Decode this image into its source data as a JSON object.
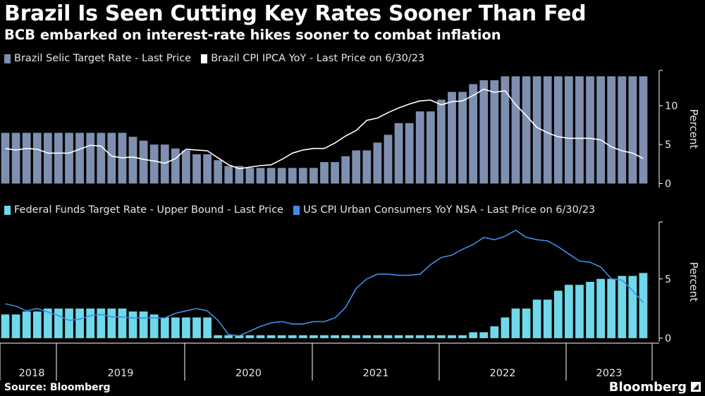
{
  "header": {
    "title": "Brazil Is Seen Cutting Key Rates Sooner Than Fed",
    "subtitle": "BCB embarked on interest-rate hikes sooner to combat inflation"
  },
  "footer": {
    "source": "Source: Bloomberg",
    "brand": "Bloomberg"
  },
  "colors": {
    "selic": "#7f8fb0",
    "ipca": "#ffffff",
    "fedfunds": "#6fd8ea",
    "uscpi": "#3e8ee8",
    "axis": "#ffffff"
  },
  "chart_data": [
    {
      "type": "bar",
      "title": "Brazil",
      "ylabel": "Percent",
      "ylim": [
        -0.5,
        14.5
      ],
      "yticks": [
        0,
        5,
        10
      ],
      "x_period": "quarterly 2018Q1-2023Q2 in 1/4-quarter steps (months/1.33)",
      "legend": [
        "Brazil Selic Target Rate - Last Price",
        "Brazil CPI IPCA YoY - Last Price on 6/30/23"
      ],
      "series": [
        {
          "name": "Brazil Selic Target Rate - Last Price",
          "type": "bar",
          "values": [
            6.5,
            6.5,
            6.5,
            6.5,
            6.5,
            6.5,
            6.5,
            6.5,
            6.5,
            6.5,
            6.5,
            6.5,
            6.0,
            5.5,
            5.0,
            5.0,
            4.5,
            4.25,
            3.75,
            3.75,
            3.0,
            2.25,
            2.25,
            2.0,
            2.0,
            2.0,
            2.0,
            2.0,
            2.0,
            2.0,
            2.75,
            2.75,
            3.5,
            4.25,
            4.25,
            5.25,
            6.25,
            7.75,
            7.75,
            9.25,
            9.25,
            10.75,
            11.75,
            11.75,
            12.75,
            13.25,
            13.25,
            13.75,
            13.75,
            13.75,
            13.75,
            13.75,
            13.75,
            13.75,
            13.75,
            13.75,
            13.75,
            13.75,
            13.75,
            13.75,
            13.75
          ]
        },
        {
          "name": "Brazil CPI IPCA YoY - Last Price on 6/30/23",
          "type": "line",
          "values": [
            4.5,
            4.3,
            4.5,
            4.4,
            3.9,
            3.9,
            3.9,
            4.4,
            4.9,
            4.8,
            3.5,
            3.3,
            3.4,
            3.1,
            2.9,
            2.6,
            3.2,
            4.4,
            4.3,
            4.2,
            3.3,
            2.4,
            1.9,
            2.1,
            2.3,
            2.4,
            3.1,
            3.9,
            4.3,
            4.5,
            4.5,
            5.2,
            6.1,
            6.8,
            8.1,
            8.4,
            9.1,
            9.7,
            10.2,
            10.6,
            10.7,
            10.1,
            10.5,
            10.6,
            11.3,
            12.1,
            11.7,
            11.9,
            10.1,
            8.7,
            7.2,
            6.5,
            6.0,
            5.8,
            5.8,
            5.8,
            5.6,
            4.7,
            4.2,
            3.9,
            3.2
          ]
        }
      ]
    },
    {
      "type": "bar",
      "title": "US",
      "ylabel": "Percent",
      "ylim": [
        -0.3,
        9.8
      ],
      "yticks": [
        0,
        5
      ],
      "legend": [
        "Federal Funds Target Rate - Upper Bound - Last Price",
        "US CPI Urban Consumers YoY NSA - Last Price on 6/30/23"
      ],
      "series": [
        {
          "name": "Federal Funds Target Rate - Upper Bound - Last Price",
          "type": "bar",
          "values": [
            2.0,
            2.0,
            2.25,
            2.25,
            2.5,
            2.5,
            2.5,
            2.5,
            2.5,
            2.5,
            2.5,
            2.5,
            2.25,
            2.25,
            2.0,
            1.75,
            1.75,
            1.75,
            1.75,
            1.75,
            0.25,
            0.25,
            0.25,
            0.25,
            0.25,
            0.25,
            0.25,
            0.25,
            0.25,
            0.25,
            0.25,
            0.25,
            0.25,
            0.25,
            0.25,
            0.25,
            0.25,
            0.25,
            0.25,
            0.25,
            0.25,
            0.25,
            0.25,
            0.25,
            0.5,
            0.5,
            1.0,
            1.75,
            2.5,
            2.5,
            3.25,
            3.25,
            4.0,
            4.5,
            4.5,
            4.75,
            5.0,
            5.0,
            5.25,
            5.25,
            5.5
          ]
        },
        {
          "name": "US CPI Urban Consumers YoY NSA - Last Price on 6/30/23",
          "type": "line",
          "values": [
            2.9,
            2.7,
            2.3,
            2.5,
            2.2,
            1.9,
            1.5,
            1.6,
            1.9,
            2.0,
            1.8,
            1.8,
            1.7,
            1.7,
            1.7,
            1.7,
            2.1,
            2.3,
            2.5,
            2.3,
            1.5,
            0.3,
            0.2,
            0.6,
            1.0,
            1.3,
            1.4,
            1.2,
            1.2,
            1.4,
            1.4,
            1.7,
            2.6,
            4.2,
            5.0,
            5.4,
            5.4,
            5.3,
            5.3,
            5.4,
            6.2,
            6.8,
            7.0,
            7.5,
            7.9,
            8.5,
            8.3,
            8.6,
            9.1,
            8.5,
            8.3,
            8.2,
            7.7,
            7.1,
            6.5,
            6.4,
            6.0,
            5.0,
            4.9,
            4.0,
            3.0
          ]
        }
      ]
    }
  ],
  "xaxis": {
    "labels": [
      "2018",
      "2019",
      "2020",
      "2021",
      "2022",
      "2023"
    ]
  },
  "legends": {
    "top": [
      "Brazil Selic Target Rate - Last Price",
      "Brazil CPI IPCA YoY - Last Price on 6/30/23"
    ],
    "bottom": [
      "Federal Funds Target Rate - Upper Bound - Last Price",
      "US CPI Urban Consumers YoY NSA - Last Price on 6/30/23"
    ]
  }
}
